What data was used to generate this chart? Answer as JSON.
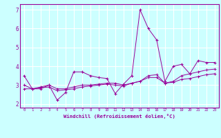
{
  "x": [
    0,
    1,
    2,
    3,
    4,
    5,
    6,
    7,
    8,
    9,
    10,
    11,
    12,
    13,
    14,
    15,
    16,
    17,
    18,
    19,
    20,
    21,
    22,
    23
  ],
  "line1": [
    3.5,
    2.8,
    2.8,
    3.0,
    2.2,
    2.6,
    3.7,
    3.7,
    3.5,
    3.4,
    3.35,
    2.55,
    3.05,
    3.5,
    7.0,
    6.0,
    5.4,
    3.2,
    4.0,
    4.1,
    3.6,
    4.3,
    4.2,
    4.2
  ],
  "line2": [
    3.0,
    2.8,
    2.9,
    3.0,
    2.8,
    2.8,
    2.9,
    3.0,
    3.0,
    3.05,
    3.1,
    3.1,
    3.0,
    3.1,
    3.2,
    3.4,
    3.4,
    3.1,
    3.15,
    3.3,
    3.35,
    3.45,
    3.55,
    3.6
  ],
  "line3": [
    2.8,
    2.8,
    2.85,
    2.9,
    2.7,
    2.75,
    2.8,
    2.9,
    2.95,
    3.0,
    3.05,
    3.0,
    2.95,
    3.1,
    3.2,
    3.5,
    3.55,
    3.1,
    3.2,
    3.5,
    3.6,
    3.7,
    3.8,
    3.85
  ],
  "color": "#990099",
  "bg_color": "#ccffff",
  "grid_color": "#ffffff",
  "ylabel_vals": [
    2,
    3,
    4,
    5,
    6,
    7
  ],
  "xlabel": "Windchill (Refroidissement éolien,°C)",
  "ylim": [
    1.8,
    7.3
  ],
  "xlim": [
    -0.5,
    23.5
  ]
}
